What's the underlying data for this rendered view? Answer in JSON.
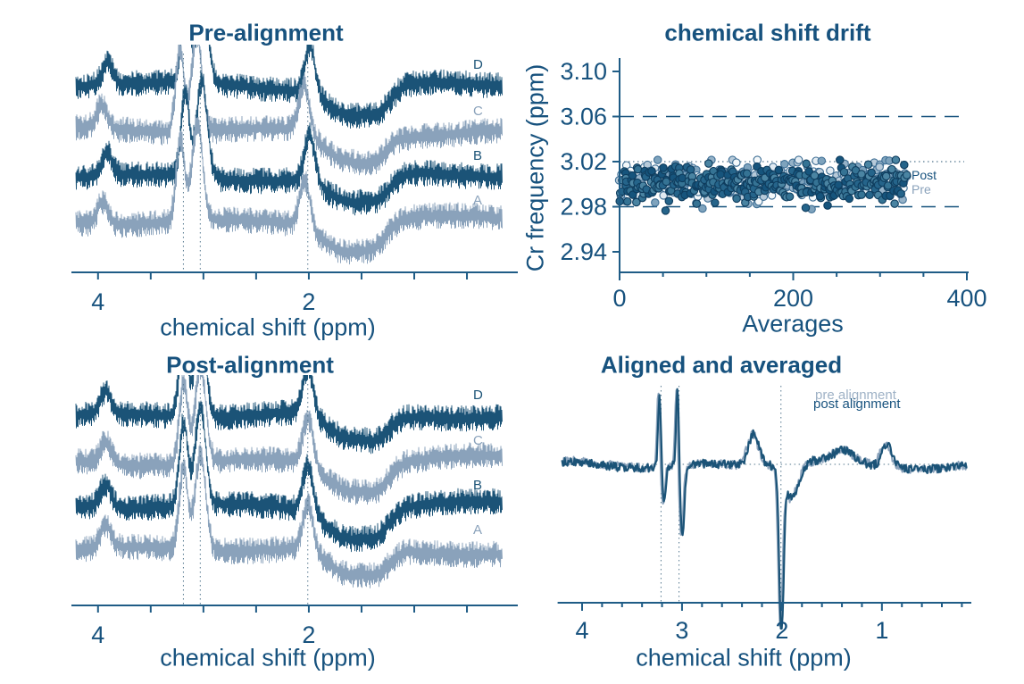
{
  "colors": {
    "background": "#ffffff",
    "dark": "#1b5377",
    "light": "#8aa2bb",
    "text": "#17527e",
    "axis": "#1f5c86",
    "guide": "#55788f",
    "post_stroke": "#0f3d5e",
    "pre_stroke": "#3f6f95",
    "post_fills": [
      "#16547c",
      "#25648a",
      "#357394",
      "#4a84a2"
    ],
    "pre_fills": [
      "#7ea3bd",
      "#95b2c8",
      "#b7cad9",
      "#e2ebf2",
      "#f4f8fa"
    ]
  },
  "chart_data": [
    {
      "id": "pre-alignment",
      "type": "line",
      "title": "Pre-alignment",
      "xlabel": "chemical shift (ppm)",
      "x_axis": {
        "range_ppm": [
          4.21,
          0.17
        ],
        "major_ticks": [
          {
            "ppm": 4.0,
            "label": "4"
          },
          {
            "ppm": 2.0,
            "label": "2"
          }
        ],
        "minor_tick_step_ppm": 0.5
      },
      "guide_lines_ppm": [
        3.19,
        3.03,
        2.01
      ],
      "traces": [
        {
          "label": "D",
          "color": "dark",
          "shift_ppm": -0.02,
          "seed": 101
        },
        {
          "label": "C",
          "color": "light",
          "shift_ppm": 0.035,
          "seed": 102
        },
        {
          "label": "B",
          "color": "dark",
          "shift_ppm": -0.015,
          "seed": 103
        },
        {
          "label": "A",
          "color": "light",
          "shift_ppm": 0.03,
          "seed": 104
        }
      ],
      "peaks": [
        {
          "ppm": 3.93,
          "amp": 26,
          "width": 0.05
        },
        {
          "ppm": 3.19,
          "amp": 92,
          "width": 0.04
        },
        {
          "ppm": 3.03,
          "amp": 108,
          "width": 0.05
        },
        {
          "ppm": 2.01,
          "amp": 54,
          "width": 0.05
        },
        {
          "ppm": 1.6,
          "amp": -32,
          "width": 0.22
        },
        {
          "ppm": 1.33,
          "amp": -14,
          "width": 0.1
        }
      ],
      "noise_halfwidth": 13
    },
    {
      "id": "chemical-shift-drift",
      "type": "scatter",
      "title": "chemical shift drift",
      "xlabel": "Averages",
      "ylabel": "Cr frequency (ppm)",
      "xlim": [
        0,
        400
      ],
      "x_ticks": [
        {
          "value": 0,
          "label": "0"
        },
        {
          "value": 200,
          "label": "200"
        },
        {
          "value": 400,
          "label": "400"
        }
      ],
      "x_minor_step": 50,
      "ylim": [
        2.92,
        3.12
      ],
      "y_ticks": [
        {
          "value": 3.1,
          "label": "3.10"
        },
        {
          "value": 3.06,
          "label": "3.06"
        },
        {
          "value": 3.02,
          "label": "3.02"
        },
        {
          "value": 2.98,
          "label": "2.98"
        },
        {
          "value": 2.94,
          "label": "2.94"
        }
      ],
      "dashed_lines_y": [
        3.06,
        2.98
      ],
      "dotted_line_y": 3.02,
      "series": [
        {
          "name": "Post",
          "n": 330,
          "x_range": [
            1,
            330
          ],
          "y_mean": 3.0,
          "y_sd": 0.0085,
          "y_clip": [
            2.9765,
            3.0215
          ],
          "seed": 201
        },
        {
          "name": "Pre",
          "n": 330,
          "x_range": [
            1,
            330
          ],
          "y_mean": 3.003,
          "y_sd": 0.0085,
          "y_clip": [
            2.9765,
            3.0215
          ],
          "seed": 202
        }
      ]
    },
    {
      "id": "post-alignment",
      "type": "line",
      "title": "Post-alignment",
      "xlabel": "chemical shift (ppm)",
      "x_axis": {
        "range_ppm": [
          4.21,
          0.17
        ],
        "major_ticks": [
          {
            "ppm": 4.0,
            "label": "4"
          },
          {
            "ppm": 2.0,
            "label": "2"
          }
        ],
        "minor_tick_step_ppm": 0.5
      },
      "guide_lines_ppm": [
        3.19,
        3.03,
        2.01
      ],
      "traces": [
        {
          "label": "D",
          "color": "dark",
          "shift_ppm": 0,
          "seed": 301
        },
        {
          "label": "C",
          "color": "light",
          "shift_ppm": 0,
          "seed": 302
        },
        {
          "label": "B",
          "color": "dark",
          "shift_ppm": 0,
          "seed": 303
        },
        {
          "label": "A",
          "color": "light",
          "shift_ppm": 0,
          "seed": 304
        }
      ],
      "peaks": [
        {
          "ppm": 3.93,
          "amp": 26,
          "width": 0.05
        },
        {
          "ppm": 3.19,
          "amp": 92,
          "width": 0.04
        },
        {
          "ppm": 3.03,
          "amp": 108,
          "width": 0.05
        },
        {
          "ppm": 2.01,
          "amp": 54,
          "width": 0.05
        },
        {
          "ppm": 1.6,
          "amp": -32,
          "width": 0.22
        },
        {
          "ppm": 1.33,
          "amp": -14,
          "width": 0.1
        }
      ],
      "noise_halfwidth": 13
    },
    {
      "id": "aligned-and-averaged",
      "type": "line",
      "title": "Aligned and averaged",
      "xlabel": "chemical shift (ppm)",
      "x_axis": {
        "range_ppm": [
          4.2,
          0.15
        ],
        "major_ticks": [
          {
            "ppm": 4.0,
            "label": "4"
          },
          {
            "ppm": 3.0,
            "label": "3"
          },
          {
            "ppm": 2.0,
            "label": "2"
          },
          {
            "ppm": 1.0,
            "label": "1"
          }
        ],
        "minor_tick_step_ppm": 0.2
      },
      "guide_lines_ppm": [
        3.21,
        3.03,
        2.01
      ],
      "baseline_dotted": true,
      "series": [
        {
          "name": "pre alignment",
          "color": "light",
          "shift_ppm": 0.012,
          "dip_scale": 0.93,
          "seed": 401
        },
        {
          "name": "post alignment",
          "color": "dark",
          "shift_ppm": 0,
          "dip_scale": 1.0,
          "seed": 402
        }
      ],
      "peaks": [
        {
          "ppm": 3.225,
          "amp": 85,
          "width": 0.014
        },
        {
          "ppm": 3.18,
          "amp": -42,
          "width": 0.018
        },
        {
          "ppm": 3.045,
          "amp": 88,
          "width": 0.013
        },
        {
          "ppm": 2.995,
          "amp": -80,
          "width": 0.02
        },
        {
          "ppm": 2.28,
          "amp": 36,
          "width": 0.055
        },
        {
          "ppm": 2.005,
          "amp": -180,
          "width": 0.022,
          "dip": true
        },
        {
          "ppm": 1.9,
          "amp": -38,
          "width": 0.07
        },
        {
          "ppm": 1.38,
          "amp": 12,
          "width": 0.1
        },
        {
          "ppm": 0.95,
          "amp": 26,
          "width": 0.05
        },
        {
          "ppm": 0.5,
          "amp": -5,
          "width": 0.25
        }
      ],
      "noise_amp": 5
    }
  ]
}
